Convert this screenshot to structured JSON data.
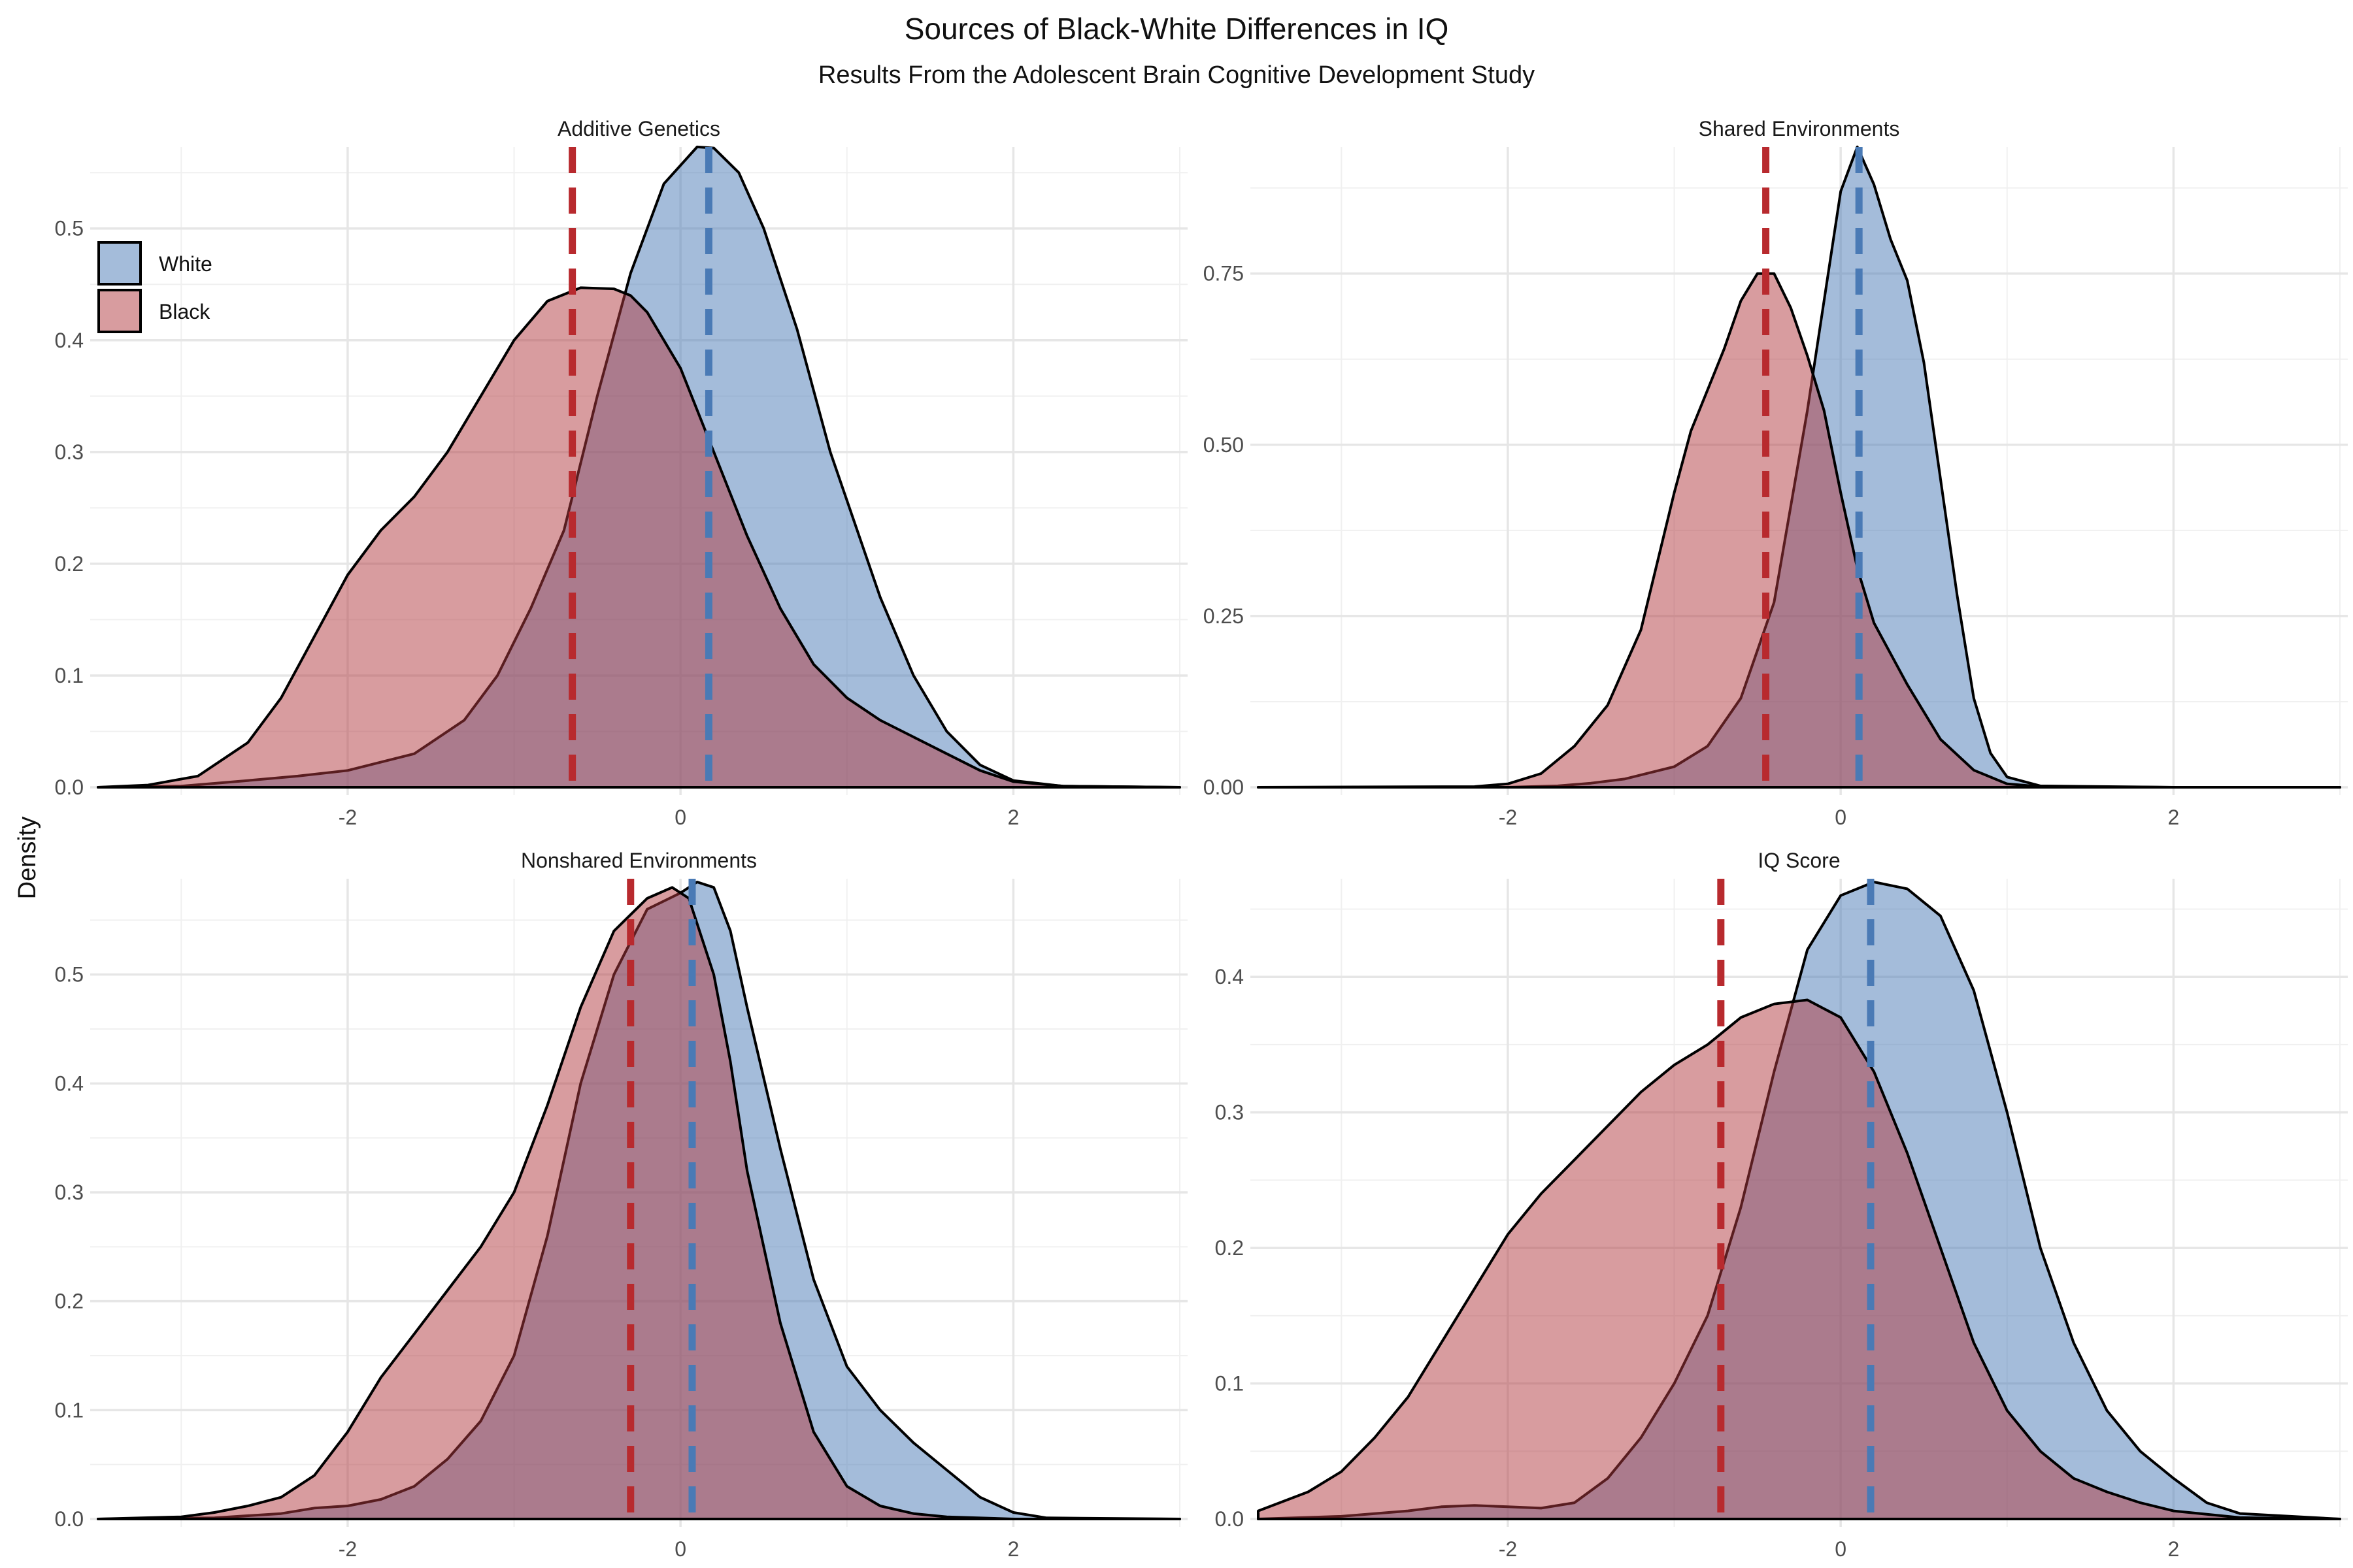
{
  "chart_data": {
    "type": "area",
    "kind": "density facets",
    "title": "Sources of Black-White Differences in IQ",
    "subtitle": "Results From the Adolescent Brain Cognitive Development Study",
    "ylabel": "Density",
    "legend": {
      "position": "top-left inside first panel",
      "entries": [
        {
          "name": "White",
          "color": "#4a7ab5"
        },
        {
          "name": "Black",
          "color": "#b23a3f"
        }
      ]
    },
    "colors": {
      "white_fill": "#4a7ab5",
      "black_fill": "#b23a3f",
      "white_line": "#4a7ab5",
      "black_line": "#b82a2e",
      "outline": "#000000"
    },
    "xlim": [
      -3.5,
      3.0
    ],
    "x_ticks": [
      -2,
      0,
      2
    ],
    "x_tick_labels": [
      "-2",
      "0",
      "2"
    ],
    "facets": [
      {
        "title": "Additive Genetics",
        "ylim": [
          0,
          0.57
        ],
        "y_ticks": [
          0,
          0.1,
          0.2,
          0.3,
          0.4,
          0.5
        ],
        "y_tick_labels": [
          "0.0",
          "0.1",
          "0.2",
          "0.3",
          "0.4",
          "0.5"
        ],
        "y_minor": [
          0.05,
          0.15,
          0.25,
          0.35,
          0.45,
          0.55
        ],
        "series": [
          {
            "name": "White",
            "mean": 0.17,
            "peak": 0.574,
            "x": [
              -3.5,
              -3.0,
              -2.6,
              -2.3,
              -2.0,
              -1.6,
              -1.3,
              -1.1,
              -0.9,
              -0.7,
              -0.5,
              -0.3,
              -0.1,
              0.1,
              0.2,
              0.35,
              0.5,
              0.7,
              0.9,
              1.2,
              1.4,
              1.6,
              1.8,
              2.0,
              2.3,
              3.0
            ],
            "y": [
              0,
              0.001,
              0.006,
              0.01,
              0.015,
              0.03,
              0.06,
              0.1,
              0.16,
              0.23,
              0.35,
              0.46,
              0.54,
              0.573,
              0.572,
              0.55,
              0.5,
              0.41,
              0.3,
              0.17,
              0.1,
              0.05,
              0.02,
              0.006,
              0.001,
              0
            ]
          },
          {
            "name": "Black",
            "mean": -0.65,
            "peak": 0.448,
            "x": [
              -3.5,
              -3.2,
              -2.9,
              -2.6,
              -2.4,
              -2.2,
              -2.0,
              -1.8,
              -1.6,
              -1.4,
              -1.2,
              -1.0,
              -0.8,
              -0.6,
              -0.4,
              -0.3,
              -0.2,
              0.0,
              0.2,
              0.4,
              0.6,
              0.8,
              1.0,
              1.2,
              1.4,
              1.6,
              1.8,
              2.0,
              2.3,
              3.0
            ],
            "y": [
              0,
              0.002,
              0.01,
              0.04,
              0.08,
              0.135,
              0.19,
              0.23,
              0.26,
              0.3,
              0.35,
              0.4,
              0.435,
              0.447,
              0.446,
              0.44,
              0.425,
              0.375,
              0.3,
              0.225,
              0.16,
              0.11,
              0.08,
              0.06,
              0.045,
              0.03,
              0.015,
              0.005,
              0.001,
              0
            ]
          }
        ]
      },
      {
        "title": "Shared Environments",
        "ylim": [
          0,
          0.93
        ],
        "y_ticks": [
          0,
          0.25,
          0.5,
          0.75
        ],
        "y_tick_labels": [
          "0.00",
          "0.25",
          "0.50",
          "0.75"
        ],
        "y_minor": [
          0.125,
          0.375,
          0.625,
          0.875
        ],
        "series": [
          {
            "name": "White",
            "mean": 0.11,
            "peak": 0.94,
            "x": [
              -3.5,
              -2.0,
              -1.7,
              -1.5,
              -1.3,
              -1.0,
              -0.8,
              -0.6,
              -0.4,
              -0.2,
              0.0,
              0.1,
              0.2,
              0.3,
              0.4,
              0.5,
              0.6,
              0.7,
              0.8,
              0.9,
              1.0,
              1.2,
              2.0,
              3.0
            ],
            "y": [
              0,
              0,
              0.002,
              0.006,
              0.012,
              0.03,
              0.06,
              0.13,
              0.27,
              0.55,
              0.87,
              0.935,
              0.88,
              0.8,
              0.74,
              0.62,
              0.45,
              0.28,
              0.13,
              0.05,
              0.015,
              0.002,
              0,
              0
            ]
          },
          {
            "name": "Black",
            "mean": -0.45,
            "peak": 0.755,
            "x": [
              -3.5,
              -2.2,
              -2.0,
              -1.8,
              -1.6,
              -1.4,
              -1.2,
              -1.0,
              -0.9,
              -0.8,
              -0.7,
              -0.6,
              -0.5,
              -0.4,
              -0.3,
              -0.2,
              -0.1,
              0.0,
              0.1,
              0.2,
              0.4,
              0.6,
              0.8,
              1.0,
              1.2,
              2.0,
              3.0
            ],
            "y": [
              0,
              0.001,
              0.005,
              0.02,
              0.06,
              0.12,
              0.23,
              0.43,
              0.52,
              0.58,
              0.64,
              0.71,
              0.75,
              0.75,
              0.7,
              0.63,
              0.55,
              0.43,
              0.32,
              0.24,
              0.15,
              0.07,
              0.025,
              0.005,
              0.001,
              0,
              0
            ]
          }
        ]
      },
      {
        "title": "Nonshared Environments",
        "ylim": [
          0,
          0.585
        ],
        "y_ticks": [
          0,
          0.1,
          0.2,
          0.3,
          0.4,
          0.5
        ],
        "y_tick_labels": [
          "0.0",
          "0.1",
          "0.2",
          "0.3",
          "0.4",
          "0.5"
        ],
        "y_minor": [
          0.05,
          0.15,
          0.25,
          0.35,
          0.45,
          0.55
        ],
        "series": [
          {
            "name": "White",
            "mean": 0.07,
            "peak": 0.585,
            "x": [
              -3.5,
              -2.8,
              -2.4,
              -2.2,
              -2.0,
              -1.8,
              -1.6,
              -1.4,
              -1.2,
              -1.0,
              -0.8,
              -0.6,
              -0.4,
              -0.2,
              0.0,
              0.1,
              0.2,
              0.3,
              0.4,
              0.6,
              0.8,
              1.0,
              1.2,
              1.4,
              1.6,
              1.8,
              2.0,
              2.2,
              3.0
            ],
            "y": [
              0,
              0.001,
              0.005,
              0.01,
              0.012,
              0.018,
              0.03,
              0.055,
              0.09,
              0.15,
              0.26,
              0.4,
              0.5,
              0.56,
              0.575,
              0.585,
              0.58,
              0.54,
              0.47,
              0.34,
              0.22,
              0.14,
              0.1,
              0.07,
              0.045,
              0.02,
              0.006,
              0.001,
              0
            ]
          },
          {
            "name": "Black",
            "mean": -0.3,
            "peak": 0.58,
            "x": [
              -3.5,
              -3.0,
              -2.8,
              -2.6,
              -2.4,
              -2.2,
              -2.0,
              -1.8,
              -1.6,
              -1.4,
              -1.2,
              -1.0,
              -0.8,
              -0.6,
              -0.4,
              -0.2,
              -0.05,
              0.05,
              0.2,
              0.3,
              0.4,
              0.6,
              0.8,
              1.0,
              1.2,
              1.4,
              1.6,
              2.0,
              3.0
            ],
            "y": [
              0,
              0.002,
              0.006,
              0.012,
              0.02,
              0.04,
              0.08,
              0.13,
              0.17,
              0.21,
              0.25,
              0.3,
              0.38,
              0.47,
              0.54,
              0.57,
              0.58,
              0.57,
              0.5,
              0.42,
              0.32,
              0.18,
              0.08,
              0.03,
              0.012,
              0.005,
              0.002,
              0,
              0
            ]
          }
        ]
      },
      {
        "title": "IQ Score",
        "ylim": [
          0,
          0.47
        ],
        "y_ticks": [
          0,
          0.1,
          0.2,
          0.3,
          0.4
        ],
        "y_tick_labels": [
          "0.0",
          "0.1",
          "0.2",
          "0.3",
          "0.4"
        ],
        "y_minor": [
          0.05,
          0.15,
          0.25,
          0.35,
          0.45
        ],
        "series": [
          {
            "name": "White",
            "mean": 0.18,
            "peak": 0.47,
            "x": [
              -3.5,
              -3.0,
              -2.6,
              -2.4,
              -2.2,
              -2.0,
              -1.8,
              -1.6,
              -1.4,
              -1.2,
              -1.0,
              -0.8,
              -0.6,
              -0.4,
              -0.2,
              0.0,
              0.2,
              0.4,
              0.6,
              0.8,
              1.0,
              1.2,
              1.4,
              1.6,
              1.8,
              2.0,
              2.2,
              2.4,
              3.0
            ],
            "y": [
              0,
              0.002,
              0.006,
              0.009,
              0.01,
              0.009,
              0.008,
              0.012,
              0.03,
              0.06,
              0.1,
              0.15,
              0.23,
              0.33,
              0.42,
              0.46,
              0.47,
              0.465,
              0.445,
              0.39,
              0.3,
              0.2,
              0.13,
              0.08,
              0.05,
              0.03,
              0.012,
              0.004,
              0
            ]
          },
          {
            "name": "Black",
            "mean": -0.72,
            "peak": 0.383,
            "x": [
              -3.5,
              -3.2,
              -3.0,
              -2.8,
              -2.6,
              -2.4,
              -2.2,
              -2.0,
              -1.8,
              -1.6,
              -1.4,
              -1.2,
              -1.0,
              -0.8,
              -0.6,
              -0.4,
              -0.2,
              0.0,
              0.2,
              0.4,
              0.6,
              0.8,
              1.0,
              1.2,
              1.4,
              1.6,
              1.8,
              2.0,
              2.4,
              3.0
            ],
            "y": [
              0.006,
              0.02,
              0.035,
              0.06,
              0.09,
              0.13,
              0.17,
              0.21,
              0.24,
              0.265,
              0.29,
              0.315,
              0.335,
              0.35,
              0.37,
              0.38,
              0.383,
              0.37,
              0.33,
              0.27,
              0.2,
              0.13,
              0.08,
              0.05,
              0.03,
              0.02,
              0.012,
              0.006,
              0.001,
              0
            ]
          }
        ]
      }
    ]
  }
}
